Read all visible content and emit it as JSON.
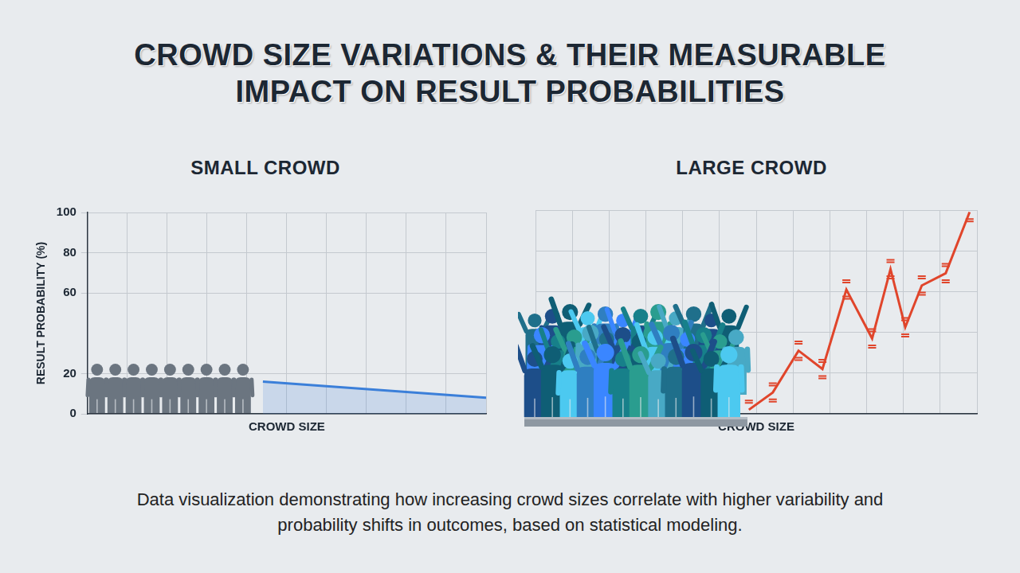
{
  "title": "CROWD SIZE VARIATIONS & THEIR MEASURABLE IMPACT ON RESULT PROBABILITIES",
  "caption": "Data visualization demonstrating how increasing crowd sizes correlate with higher variability and probability shifts in outcomes, based on statistical modeling.",
  "chart_data": [
    {
      "type": "area",
      "title": "SMALL CROWD",
      "x_label": "CROWD SIZE",
      "y_label": "RESULT PROBABILITY (%)",
      "x": [
        4.4,
        10
      ],
      "values": [
        16,
        8
      ],
      "color": "#3b7fd9",
      "xlim": [
        0,
        10
      ],
      "xticks": [
        0,
        1,
        2,
        3,
        4,
        5,
        6,
        7,
        8,
        9,
        10
      ],
      "ylim": [
        0,
        100
      ],
      "yticks": [
        0,
        20,
        60,
        80,
        100
      ],
      "grid": true,
      "tick_labels": "y"
    },
    {
      "type": "line",
      "title": "LARGE CROWD",
      "x_label": "CROWD SIZE",
      "x": [
        5.8,
        6.45,
        7.15,
        7.8,
        8.45,
        9.15,
        9.65,
        10.05,
        10.5,
        11.15,
        11.8
      ],
      "values": [
        2,
        10.5,
        31,
        22,
        61,
        37,
        71,
        42.5,
        63,
        69,
        99
      ],
      "errors": [
        4,
        4,
        4,
        4,
        4,
        4,
        4,
        4,
        4,
        4,
        4
      ],
      "color": "#e0452b",
      "xlim": [
        0,
        12
      ],
      "xticks": [
        0,
        1,
        2,
        3,
        4,
        5,
        6,
        7,
        8,
        9,
        10,
        11,
        12
      ],
      "ylim": [
        0,
        100
      ],
      "yticks": [
        0,
        20,
        40,
        60,
        80,
        100
      ],
      "grid": true,
      "tick_labels": false
    }
  ]
}
